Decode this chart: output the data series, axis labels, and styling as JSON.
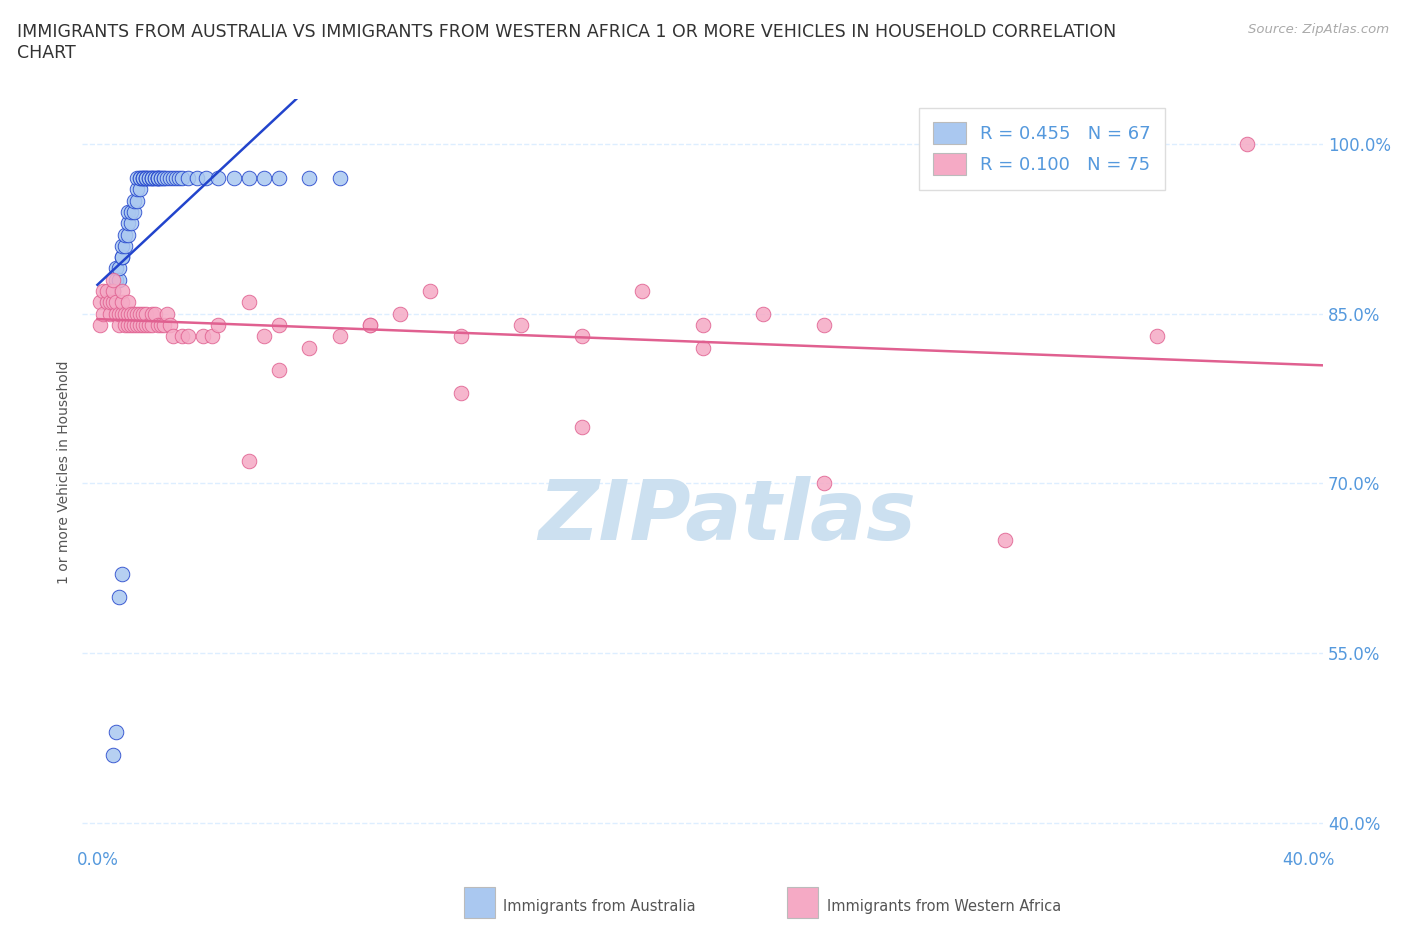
{
  "title": "IMMIGRANTS FROM AUSTRALIA VS IMMIGRANTS FROM WESTERN AFRICA 1 OR MORE VEHICLES IN HOUSEHOLD CORRELATION\nCHART",
  "source": "Source: ZipAtlas.com",
  "ylabel": "1 or more Vehicles in Household",
  "ylim": [
    0.38,
    1.04
  ],
  "xlim": [
    -0.005,
    0.405
  ],
  "yticks": [
    0.4,
    0.55,
    0.7,
    0.85,
    1.0
  ],
  "ytick_labels": [
    "40.0%",
    "55.0%",
    "70.0%",
    "85.0%",
    "100.0%"
  ],
  "xticks": [
    0.0,
    0.1,
    0.2,
    0.3,
    0.4
  ],
  "xtick_labels": [
    "0.0%",
    "",
    "",
    "",
    "40.0%"
  ],
  "legend_R_australia": "R = 0.455",
  "legend_N_australia": "N = 67",
  "legend_R_western_africa": "R = 0.100",
  "legend_N_western_africa": "N = 75",
  "color_australia": "#aac8f0",
  "color_western_africa": "#f5aac5",
  "line_color_australia": "#2244cc",
  "line_color_western_africa": "#e06090",
  "watermark_color": "#cce0f0",
  "title_color": "#333333",
  "axis_label_color": "#5599dd",
  "grid_color": "#ddeeff",
  "aus_x": [
    0.003,
    0.005,
    0.006,
    0.006,
    0.007,
    0.007,
    0.008,
    0.008,
    0.008,
    0.009,
    0.009,
    0.01,
    0.01,
    0.01,
    0.011,
    0.011,
    0.012,
    0.012,
    0.013,
    0.013,
    0.013,
    0.014,
    0.014,
    0.014,
    0.015,
    0.015,
    0.015,
    0.016,
    0.016,
    0.016,
    0.017,
    0.017,
    0.018,
    0.018,
    0.018,
    0.019,
    0.019,
    0.02,
    0.02,
    0.02,
    0.02,
    0.021,
    0.021,
    0.022,
    0.022,
    0.023,
    0.024,
    0.025,
    0.026,
    0.027,
    0.028,
    0.03,
    0.033,
    0.036,
    0.04,
    0.045,
    0.05,
    0.055,
    0.06,
    0.07,
    0.08,
    0.005,
    0.006,
    0.007,
    0.008,
    0.004,
    0.004
  ],
  "aus_y": [
    0.86,
    0.87,
    0.88,
    0.89,
    0.88,
    0.89,
    0.9,
    0.9,
    0.91,
    0.91,
    0.92,
    0.92,
    0.93,
    0.94,
    0.93,
    0.94,
    0.94,
    0.95,
    0.95,
    0.96,
    0.97,
    0.96,
    0.97,
    0.97,
    0.97,
    0.97,
    0.97,
    0.97,
    0.97,
    0.97,
    0.97,
    0.97,
    0.97,
    0.97,
    0.97,
    0.97,
    0.97,
    0.97,
    0.97,
    0.97,
    0.97,
    0.97,
    0.97,
    0.97,
    0.97,
    0.97,
    0.97,
    0.97,
    0.97,
    0.97,
    0.97,
    0.97,
    0.97,
    0.97,
    0.97,
    0.97,
    0.97,
    0.97,
    0.97,
    0.97,
    0.97,
    0.46,
    0.48,
    0.6,
    0.62,
    0.86,
    0.87
  ],
  "waf_x": [
    0.001,
    0.001,
    0.002,
    0.002,
    0.003,
    0.003,
    0.004,
    0.004,
    0.005,
    0.005,
    0.005,
    0.006,
    0.006,
    0.007,
    0.007,
    0.008,
    0.008,
    0.008,
    0.009,
    0.009,
    0.01,
    0.01,
    0.01,
    0.011,
    0.011,
    0.012,
    0.012,
    0.013,
    0.013,
    0.014,
    0.014,
    0.015,
    0.015,
    0.016,
    0.016,
    0.017,
    0.018,
    0.018,
    0.019,
    0.02,
    0.021,
    0.022,
    0.023,
    0.024,
    0.025,
    0.028,
    0.03,
    0.035,
    0.038,
    0.04,
    0.05,
    0.055,
    0.06,
    0.07,
    0.08,
    0.09,
    0.1,
    0.11,
    0.12,
    0.14,
    0.16,
    0.18,
    0.2,
    0.22,
    0.24,
    0.05,
    0.06,
    0.09,
    0.12,
    0.16,
    0.2,
    0.24,
    0.3,
    0.35,
    0.38
  ],
  "waf_y": [
    0.84,
    0.86,
    0.85,
    0.87,
    0.86,
    0.87,
    0.85,
    0.86,
    0.86,
    0.87,
    0.88,
    0.85,
    0.86,
    0.84,
    0.85,
    0.85,
    0.86,
    0.87,
    0.84,
    0.85,
    0.84,
    0.85,
    0.86,
    0.84,
    0.85,
    0.84,
    0.85,
    0.84,
    0.85,
    0.84,
    0.85,
    0.84,
    0.85,
    0.84,
    0.85,
    0.84,
    0.84,
    0.85,
    0.85,
    0.84,
    0.84,
    0.84,
    0.85,
    0.84,
    0.83,
    0.83,
    0.83,
    0.83,
    0.83,
    0.84,
    0.86,
    0.83,
    0.84,
    0.82,
    0.83,
    0.84,
    0.85,
    0.87,
    0.83,
    0.84,
    0.83,
    0.87,
    0.84,
    0.85,
    0.84,
    0.72,
    0.8,
    0.84,
    0.78,
    0.75,
    0.82,
    0.7,
    0.65,
    0.83,
    1.0
  ]
}
